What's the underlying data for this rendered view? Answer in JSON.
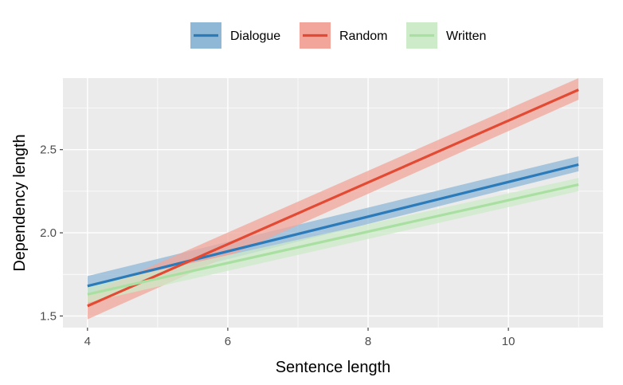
{
  "chart_data": {
    "type": "line",
    "xlabel": "Sentence length",
    "ylabel": "Dependency length",
    "xlim": [
      3.65,
      11.35
    ],
    "ylim": [
      1.43,
      2.93
    ],
    "x_ticks": [
      4,
      6,
      8,
      10
    ],
    "y_ticks": [
      1.5,
      2.0,
      2.5
    ],
    "x_tick_labels": [
      "4",
      "6",
      "8",
      "10"
    ],
    "y_tick_labels": [
      "1.5",
      "2.0",
      "2.5"
    ],
    "grid": true,
    "legend_position": "top",
    "series": [
      {
        "name": "Dialogue",
        "color": "#2b7bba",
        "band_color": "#8fb7d6",
        "x": [
          4,
          11
        ],
        "y": [
          1.68,
          2.41
        ],
        "ci_lower": [
          1.63,
          2.37
        ],
        "ci_upper": [
          1.74,
          2.46
        ]
      },
      {
        "name": "Random",
        "color": "#e34a33",
        "band_color": "#f2a59a",
        "x": [
          4,
          11
        ],
        "y": [
          1.56,
          2.86
        ],
        "ci_lower": [
          1.48,
          2.8
        ],
        "ci_upper": [
          1.63,
          2.93
        ]
      },
      {
        "name": "Written",
        "color": "#a9e0a2",
        "band_color": "#cdebc8",
        "x": [
          4,
          11
        ],
        "y": [
          1.63,
          2.29
        ],
        "ci_lower": [
          1.58,
          2.25
        ],
        "ci_upper": [
          1.68,
          2.33
        ]
      }
    ]
  }
}
